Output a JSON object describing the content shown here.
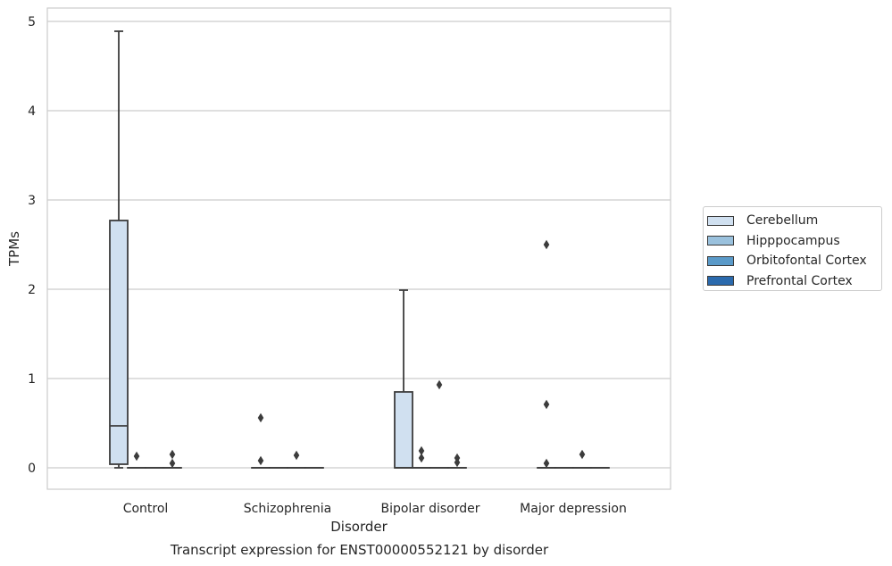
{
  "chart_data": {
    "type": "box",
    "title": "Transcript expression for ENST00000552121 by disorder",
    "xlabel": "Disorder",
    "ylabel": "TPMs",
    "ylim": [
      -0.24,
      5.15
    ],
    "yticks": [
      0,
      1,
      2,
      3,
      4,
      5
    ],
    "grid": true,
    "legend_position": "right",
    "categories": [
      "Control",
      "Schizophrenia",
      "Bipolar disorder",
      "Major depression"
    ],
    "series": [
      {
        "name": "Cerebellum",
        "color": "#d0e0f0",
        "boxes": [
          {
            "category": "Control",
            "whisker_low": 0.0,
            "q1": 0.04,
            "median": 0.47,
            "q3": 2.77,
            "whisker_high": 4.89,
            "outliers": []
          },
          {
            "category": "Schizophrenia",
            "whisker_low": 0.0,
            "q1": 0.0,
            "median": 0.0,
            "q3": 0.0,
            "whisker_high": 0.0,
            "outliers": [
              0.08,
              0.56
            ]
          },
          {
            "category": "Bipolar disorder",
            "whisker_low": 0.0,
            "q1": 0.0,
            "median": 0.0,
            "q3": 0.85,
            "whisker_high": 1.99,
            "outliers": []
          },
          {
            "category": "Major depression",
            "whisker_low": 0.0,
            "q1": 0.0,
            "median": 0.0,
            "q3": 0.0,
            "whisker_high": 0.0,
            "outliers": [
              0.05,
              0.71,
              2.5
            ]
          }
        ]
      },
      {
        "name": "Hipppocampus",
        "color": "#9ac1dd",
        "boxes": [
          {
            "category": "Control",
            "whisker_low": 0.0,
            "q1": 0.0,
            "median": 0.0,
            "q3": 0.0,
            "whisker_high": 0.0,
            "outliers": [
              0.13
            ]
          },
          {
            "category": "Schizophrenia",
            "whisker_low": 0.0,
            "q1": 0.0,
            "median": 0.0,
            "q3": 0.0,
            "whisker_high": 0.0,
            "outliers": []
          },
          {
            "category": "Bipolar disorder",
            "whisker_low": 0.0,
            "q1": 0.0,
            "median": 0.0,
            "q3": 0.0,
            "whisker_high": 0.0,
            "outliers": [
              0.11,
              0.19
            ]
          },
          {
            "category": "Major depression",
            "whisker_low": 0.0,
            "q1": 0.0,
            "median": 0.0,
            "q3": 0.0,
            "whisker_high": 0.0,
            "outliers": []
          }
        ]
      },
      {
        "name": "Orbitofontal Cortex",
        "color": "#5a9ac9",
        "boxes": [
          {
            "category": "Control",
            "whisker_low": 0.0,
            "q1": 0.0,
            "median": 0.0,
            "q3": 0.0,
            "whisker_high": 0.0,
            "outliers": []
          },
          {
            "category": "Schizophrenia",
            "whisker_low": 0.0,
            "q1": 0.0,
            "median": 0.0,
            "q3": 0.0,
            "whisker_high": 0.0,
            "outliers": [
              0.14
            ]
          },
          {
            "category": "Bipolar disorder",
            "whisker_low": 0.0,
            "q1": 0.0,
            "median": 0.0,
            "q3": 0.0,
            "whisker_high": 0.0,
            "outliers": [
              0.93
            ]
          },
          {
            "category": "Major depression",
            "whisker_low": 0.0,
            "q1": 0.0,
            "median": 0.0,
            "q3": 0.0,
            "whisker_high": 0.0,
            "outliers": [
              0.15
            ]
          }
        ]
      },
      {
        "name": "Prefrontal Cortex",
        "color": "#2b6aad",
        "boxes": [
          {
            "category": "Control",
            "whisker_low": 0.0,
            "q1": 0.0,
            "median": 0.0,
            "q3": 0.0,
            "whisker_high": 0.0,
            "outliers": [
              0.05,
              0.15
            ]
          },
          {
            "category": "Schizophrenia",
            "whisker_low": 0.0,
            "q1": 0.0,
            "median": 0.0,
            "q3": 0.0,
            "whisker_high": 0.0,
            "outliers": []
          },
          {
            "category": "Bipolar disorder",
            "whisker_low": 0.0,
            "q1": 0.0,
            "median": 0.0,
            "q3": 0.0,
            "whisker_high": 0.0,
            "outliers": [
              0.06,
              0.11
            ]
          },
          {
            "category": "Major depression",
            "whisker_low": 0.0,
            "q1": 0.0,
            "median": 0.0,
            "q3": 0.0,
            "whisker_high": 0.0,
            "outliers": []
          }
        ]
      }
    ]
  }
}
